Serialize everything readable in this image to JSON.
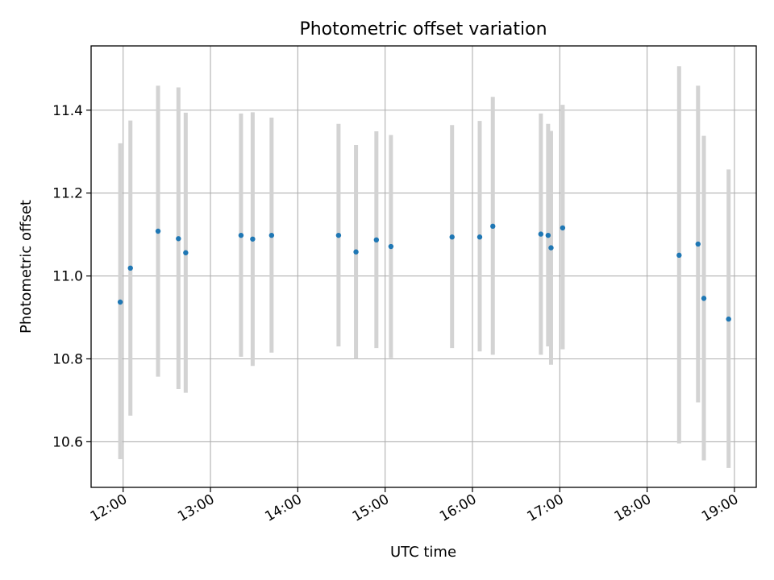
{
  "chart_data": {
    "type": "scatter",
    "title": "Photometric offset variation",
    "xlabel": "UTC time",
    "ylabel": "Photometric offset",
    "xlim": [
      "11:38",
      "19:15"
    ],
    "ylim": [
      10.49,
      11.555
    ],
    "grid": true,
    "y_ticks": [
      10.6,
      10.8,
      11.0,
      11.2,
      11.4
    ],
    "y_tick_labels": [
      "10.6",
      "10.8",
      "11.0",
      "11.2",
      "11.4"
    ],
    "x_ticks": [
      "12:00",
      "13:00",
      "14:00",
      "15:00",
      "16:00",
      "17:00",
      "18:00",
      "19:00"
    ],
    "x_tick_labels": [
      "12:00",
      "13:00",
      "14:00",
      "15:00",
      "16:00",
      "17:00",
      "18:00",
      "19:00"
    ],
    "point_color": "#1f77b4",
    "errorbar_color": "#d3d3d3",
    "points": [
      {
        "x": "11:58",
        "y": 10.937,
        "low": 10.558,
        "high": 11.32
      },
      {
        "x": "12:05",
        "y": 11.019,
        "low": 10.663,
        "high": 11.375
      },
      {
        "x": "12:24",
        "y": 11.108,
        "low": 10.757,
        "high": 11.459
      },
      {
        "x": "12:38",
        "y": 11.09,
        "low": 10.727,
        "high": 11.455
      },
      {
        "x": "12:43",
        "y": 11.056,
        "low": 10.718,
        "high": 11.394
      },
      {
        "x": "13:21",
        "y": 11.098,
        "low": 10.805,
        "high": 11.392
      },
      {
        "x": "13:29",
        "y": 11.089,
        "low": 10.783,
        "high": 11.395
      },
      {
        "x": "13:42",
        "y": 11.098,
        "low": 10.815,
        "high": 11.382
      },
      {
        "x": "14:28",
        "y": 11.098,
        "low": 10.83,
        "high": 11.367
      },
      {
        "x": "14:40",
        "y": 11.058,
        "low": 10.8,
        "high": 11.316
      },
      {
        "x": "14:54",
        "y": 11.087,
        "low": 10.826,
        "high": 11.349
      },
      {
        "x": "15:04",
        "y": 11.071,
        "low": 10.802,
        "high": 11.34
      },
      {
        "x": "15:46",
        "y": 11.094,
        "low": 10.826,
        "high": 11.364
      },
      {
        "x": "16:05",
        "y": 11.094,
        "low": 10.818,
        "high": 11.374
      },
      {
        "x": "16:14",
        "y": 11.12,
        "low": 10.81,
        "high": 11.432
      },
      {
        "x": "16:47",
        "y": 11.101,
        "low": 10.81,
        "high": 11.392
      },
      {
        "x": "16:52",
        "y": 11.098,
        "low": 10.83,
        "high": 11.367
      },
      {
        "x": "16:54",
        "y": 11.068,
        "low": 10.786,
        "high": 11.35
      },
      {
        "x": "17:02",
        "y": 11.116,
        "low": 10.823,
        "high": 11.413
      },
      {
        "x": "18:22",
        "y": 11.05,
        "low": 10.596,
        "high": 11.506
      },
      {
        "x": "18:35",
        "y": 11.077,
        "low": 10.695,
        "high": 11.459
      },
      {
        "x": "18:39",
        "y": 10.946,
        "low": 10.555,
        "high": 11.338
      },
      {
        "x": "18:56",
        "y": 10.896,
        "low": 10.537,
        "high": 11.257
      }
    ]
  }
}
